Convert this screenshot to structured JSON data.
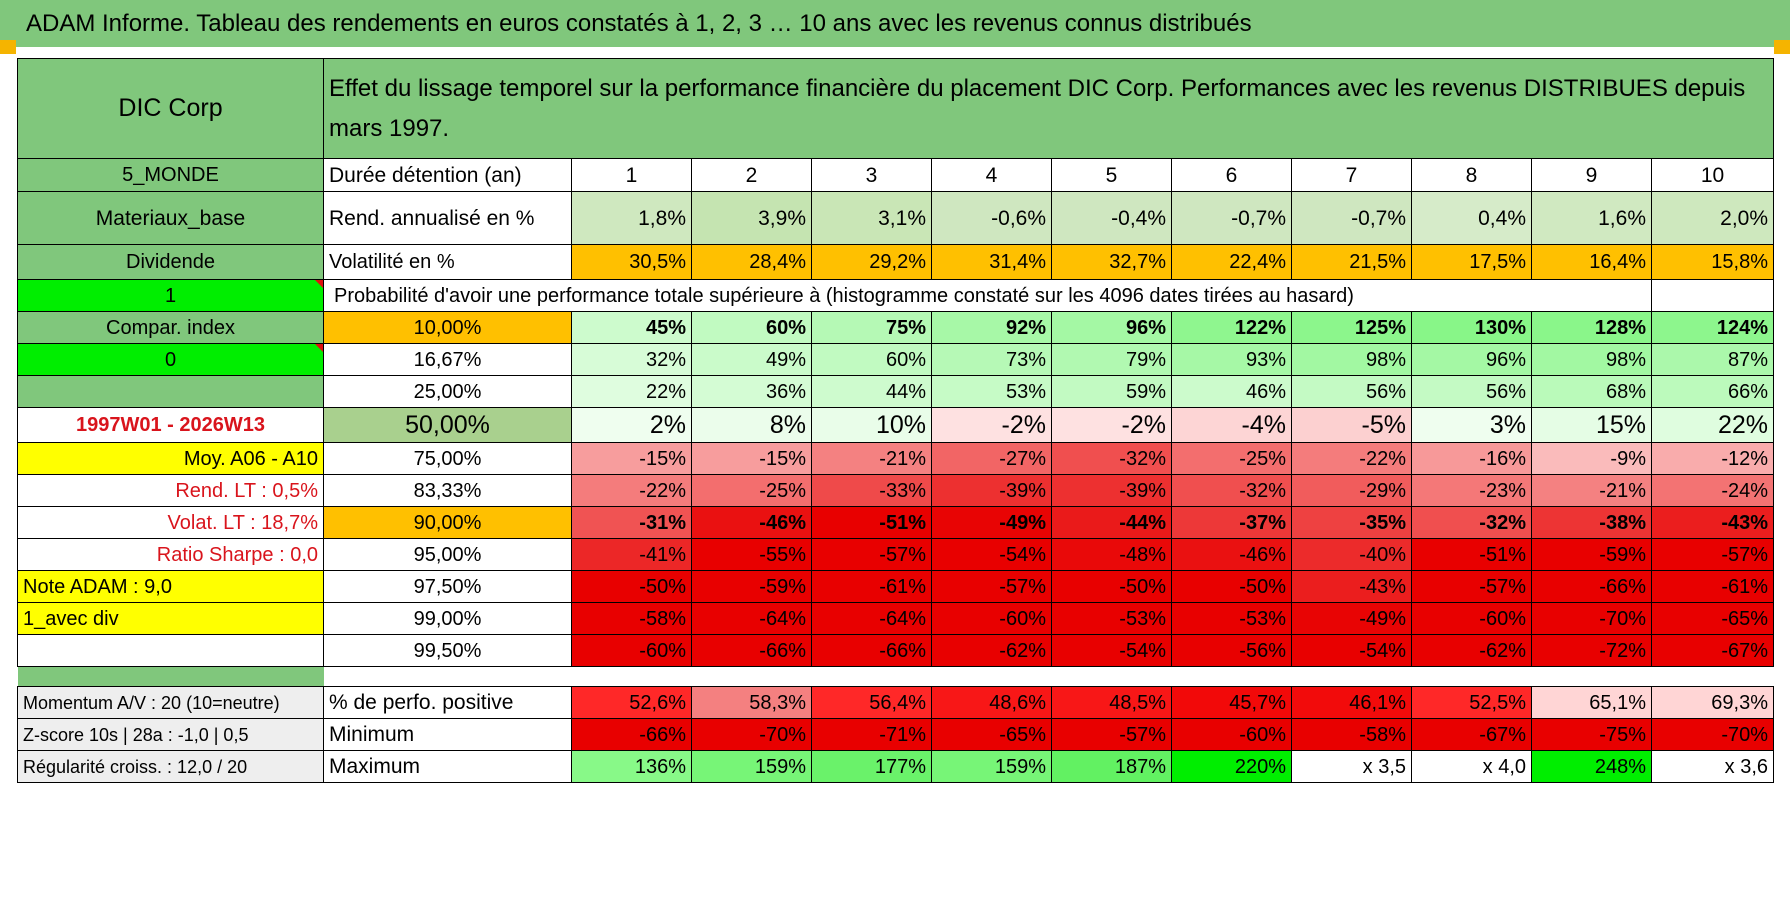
{
  "title": "ADAM Informe. Tableau des rendements en euros constatés à 1, 2, 3 … 10 ans avec les revenus connus distribués",
  "header": {
    "fund": "DIC Corp",
    "description": "Effet du lissage temporel sur la performance financière du placement DIC Corp. Performances avec les revenus DISTRIBUES depuis mars 1997."
  },
  "left_labels": {
    "zone": "5_MONDE",
    "sector": "Materiaux_base",
    "type": "Dividende",
    "flag1": "1",
    "compar": "Compar. index",
    "flag0": "0",
    "period": "1997W01 - 2026W13",
    "moy": "Moy. A06 - A10",
    "rend_lt": "Rend. LT :    0,5%",
    "volat_lt": "Volat. LT :    18,7%",
    "sharpe": "Ratio Sharpe :    0,0",
    "note": "Note ADAM : 9,0",
    "div": "1_avec div",
    "momentum": "Momentum A/V : 20 (10=neutre)",
    "zscore": "Z-score 10s | 28a : -1,0 | 0,5",
    "regularite": "Régularité croiss. : 12,0 / 20"
  },
  "row_labels": {
    "duration": "Durée détention (an)",
    "rend": "Rend. annualisé en %",
    "vol": "Volatilité en %",
    "prob": "Probabilité d'avoir une performance totale supérieure à (histogramme constaté sur les 4096 dates tirées au hasard)",
    "pct_pos": "% de perfo. positive",
    "min": "Minimum",
    "max": "Maximum"
  },
  "years": [
    "1",
    "2",
    "3",
    "4",
    "5",
    "6",
    "7",
    "8",
    "9",
    "10"
  ],
  "rend": [
    "1,8%",
    "3,9%",
    "3,1%",
    "-0,6%",
    "-0,4%",
    "-0,7%",
    "-0,7%",
    "0,4%",
    "1,6%",
    "2,0%"
  ],
  "vol": [
    "30,5%",
    "28,4%",
    "29,2%",
    "31,4%",
    "32,7%",
    "22,4%",
    "21,5%",
    "17,5%",
    "16,4%",
    "15,8%"
  ],
  "quantiles": [
    {
      "level": "10,00%",
      "values": [
        "45%",
        "60%",
        "75%",
        "92%",
        "96%",
        "122%",
        "125%",
        "130%",
        "128%",
        "124%"
      ]
    },
    {
      "level": "16,67%",
      "values": [
        "32%",
        "49%",
        "60%",
        "73%",
        "79%",
        "93%",
        "98%",
        "96%",
        "98%",
        "87%"
      ]
    },
    {
      "level": "25,00%",
      "values": [
        "22%",
        "36%",
        "44%",
        "53%",
        "59%",
        "46%",
        "56%",
        "56%",
        "68%",
        "66%"
      ]
    },
    {
      "level": "50,00%",
      "values": [
        "2%",
        "8%",
        "10%",
        "-2%",
        "-2%",
        "-4%",
        "-5%",
        "3%",
        "15%",
        "22%"
      ]
    },
    {
      "level": "75,00%",
      "values": [
        "-15%",
        "-15%",
        "-21%",
        "-27%",
        "-32%",
        "-25%",
        "-22%",
        "-16%",
        "-9%",
        "-12%"
      ]
    },
    {
      "level": "83,33%",
      "values": [
        "-22%",
        "-25%",
        "-33%",
        "-39%",
        "-39%",
        "-32%",
        "-29%",
        "-23%",
        "-21%",
        "-24%"
      ]
    },
    {
      "level": "90,00%",
      "values": [
        "-31%",
        "-46%",
        "-51%",
        "-49%",
        "-44%",
        "-37%",
        "-35%",
        "-32%",
        "-38%",
        "-43%"
      ]
    },
    {
      "level": "95,00%",
      "values": [
        "-41%",
        "-55%",
        "-57%",
        "-54%",
        "-48%",
        "-46%",
        "-40%",
        "-51%",
        "-59%",
        "-57%"
      ]
    },
    {
      "level": "97,50%",
      "values": [
        "-50%",
        "-59%",
        "-61%",
        "-57%",
        "-50%",
        "-50%",
        "-43%",
        "-57%",
        "-66%",
        "-61%"
      ]
    },
    {
      "level": "99,00%",
      "values": [
        "-58%",
        "-64%",
        "-64%",
        "-60%",
        "-53%",
        "-53%",
        "-49%",
        "-60%",
        "-70%",
        "-65%"
      ]
    },
    {
      "level": "99,50%",
      "values": [
        "-60%",
        "-66%",
        "-66%",
        "-62%",
        "-54%",
        "-56%",
        "-54%",
        "-62%",
        "-72%",
        "-67%"
      ]
    }
  ],
  "pct_pos": [
    "52,6%",
    "58,3%",
    "56,4%",
    "48,6%",
    "48,5%",
    "45,7%",
    "46,1%",
    "52,5%",
    "65,1%",
    "69,3%"
  ],
  "min": [
    "-66%",
    "-70%",
    "-71%",
    "-65%",
    "-57%",
    "-60%",
    "-58%",
    "-67%",
    "-75%",
    "-70%"
  ],
  "max": [
    "136%",
    "159%",
    "177%",
    "159%",
    "187%",
    "220%",
    "x 3,5",
    "x 4,0",
    "248%",
    "x 3,6"
  ],
  "colors": {
    "header_green": "#80c77c",
    "bright_green": "#00ee00",
    "orange": "#ffc000",
    "yellow": "#ffff00",
    "red_text": "#d9141c"
  }
}
